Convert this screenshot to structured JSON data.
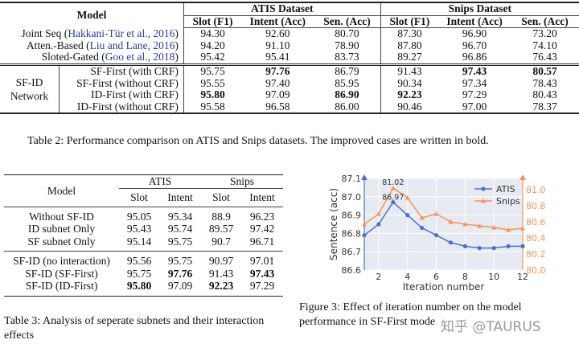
{
  "table2": {
    "model_header": "Model",
    "groups": [
      "ATIS Dataset",
      "Snips Dataset"
    ],
    "columns": [
      "Slot (F1)",
      "Intent (Acc)",
      "Sen. (Acc)",
      "Slot (F1)",
      "Intent (Acc)",
      "Sen. (Acc)"
    ],
    "baselines": [
      {
        "name": "Joint Seq (",
        "cite": "Hakkani-Tür et al., 2016",
        "close": ")",
        "values": [
          "94.30",
          "92.60",
          "80.70",
          "87.30",
          "96.90",
          "73.20"
        ],
        "bold": []
      },
      {
        "name": "Atten.-Based (",
        "cite": "Liu and Lane, 2016",
        "close": ")",
        "values": [
          "94.20",
          "91.10",
          "78.90",
          "87.80",
          "96.70",
          "74.10"
        ],
        "bold": []
      },
      {
        "name": "Sloted-Gated (",
        "cite": "Goo et al., 2018",
        "close": ")",
        "values": [
          "95.42",
          "95.41",
          "83.73",
          "89.27",
          "96.86",
          "76.43"
        ],
        "bold": []
      }
    ],
    "group_label": "SF-ID Network",
    "variants": [
      {
        "name": "SF-First (with CRF)",
        "values": [
          "95.75",
          "97.76",
          "86.79",
          "91.43",
          "97.43",
          "80.57"
        ],
        "bold": [
          1,
          4,
          5
        ]
      },
      {
        "name": "SF-First (without CRF)",
        "values": [
          "95.55",
          "97.40",
          "85.95",
          "90.34",
          "97.34",
          "78.43"
        ],
        "bold": []
      },
      {
        "name": "ID-First (with CRF)",
        "values": [
          "95.80",
          "97.09",
          "86.90",
          "92.23",
          "97.29",
          "80.43"
        ],
        "bold": [
          0,
          2,
          3
        ]
      },
      {
        "name": "ID-First (without CRF)",
        "values": [
          "95.58",
          "96.58",
          "86.00",
          "90.46",
          "97.00",
          "78.37"
        ],
        "bold": []
      }
    ],
    "caption": "Table 2: Performance comparison on ATIS and Snips datasets. The improved cases are written in bold."
  },
  "table3": {
    "model_header": "Model",
    "groups": [
      "ATIS",
      "Snips"
    ],
    "columns": [
      "Slot",
      "Intent",
      "Slot",
      "Intent"
    ],
    "block1": [
      {
        "name": "Without SF-ID",
        "values": [
          "95.05",
          "95.34",
          "88.9",
          "96.23"
        ],
        "bold": []
      },
      {
        "name": "ID subnet Only",
        "values": [
          "95.43",
          "95.74",
          "89.57",
          "97.42"
        ],
        "bold": []
      },
      {
        "name": "SF subnet Only",
        "values": [
          "95.14",
          "95.75",
          "90.7",
          "96.71"
        ],
        "bold": []
      }
    ],
    "block2": [
      {
        "name": "SF-ID (no interaction)",
        "values": [
          "95.56",
          "95.75",
          "90.97",
          "97.01"
        ],
        "bold": []
      },
      {
        "name": "SF-ID (SF-First)",
        "values": [
          "95.75",
          "97.76",
          "91.43",
          "97.43"
        ],
        "bold": [
          1,
          3
        ]
      },
      {
        "name": "SF-ID (ID-First)",
        "values": [
          "95.80",
          "97.09",
          "92.23",
          "97.29"
        ],
        "bold": [
          0,
          2
        ]
      }
    ],
    "caption": "Table 3: Analysis of seperate subnets and their interaction effects"
  },
  "chart_data": {
    "type": "line",
    "xlabel": "Iteration number",
    "ylabel": "Sentence (acc)",
    "x": [
      1,
      2,
      3,
      4,
      5,
      6,
      7,
      8,
      9,
      10,
      11,
      12
    ],
    "xticks": [
      "2",
      "4",
      "6",
      "8",
      "10",
      "12"
    ],
    "ylim_left": [
      86.6,
      87.1
    ],
    "yticks_left": [
      "86.6",
      "86.7",
      "86.8",
      "86.9",
      "87.0",
      "87.1"
    ],
    "ylim_right": [
      80.0,
      81.14
    ],
    "yticks_right": [
      "80.0",
      "80.2",
      "80.4",
      "80.6",
      "80.8",
      "81.0"
    ],
    "grid": true,
    "legend_position": "top-right",
    "series": [
      {
        "name": "ATIS",
        "axis": "left",
        "color": "#4a72c4",
        "marker": "circle",
        "values": [
          86.79,
          86.85,
          86.97,
          86.9,
          86.83,
          86.79,
          86.75,
          86.73,
          86.72,
          86.72,
          86.73,
          86.73
        ]
      },
      {
        "name": "Snips",
        "axis": "right",
        "color": "#f0955a",
        "marker": "triangle",
        "values": [
          80.57,
          80.7,
          81.02,
          80.9,
          80.65,
          80.7,
          80.6,
          80.57,
          80.55,
          80.53,
          80.5,
          80.52
        ]
      }
    ],
    "annotations": [
      "81.02",
      "86.97"
    ],
    "background": "#e8eaf2"
  },
  "figure3": {
    "caption": "Figure 3: Effect of iteration number on the model performance in SF-First mode"
  },
  "watermark": "知乎 @TAURUS"
}
